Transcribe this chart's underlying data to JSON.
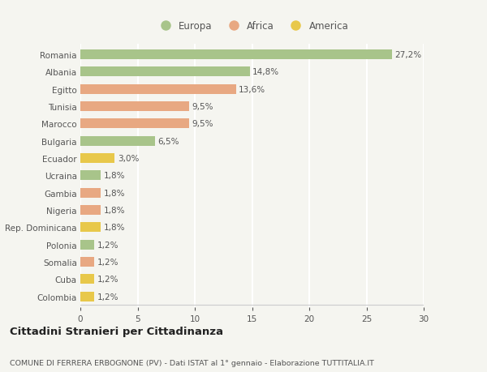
{
  "categories": [
    "Romania",
    "Albania",
    "Egitto",
    "Tunisia",
    "Marocco",
    "Bulgaria",
    "Ecuador",
    "Ucraina",
    "Gambia",
    "Nigeria",
    "Rep. Dominicana",
    "Polonia",
    "Somalia",
    "Cuba",
    "Colombia"
  ],
  "values": [
    27.2,
    14.8,
    13.6,
    9.5,
    9.5,
    6.5,
    3.0,
    1.8,
    1.8,
    1.8,
    1.8,
    1.2,
    1.2,
    1.2,
    1.2
  ],
  "labels": [
    "27,2%",
    "14,8%",
    "13,6%",
    "9,5%",
    "9,5%",
    "6,5%",
    "3,0%",
    "1,8%",
    "1,8%",
    "1,8%",
    "1,8%",
    "1,2%",
    "1,2%",
    "1,2%",
    "1,2%"
  ],
  "colors": [
    "#a8c48a",
    "#a8c48a",
    "#e8a882",
    "#e8a882",
    "#e8a882",
    "#a8c48a",
    "#e8c84a",
    "#a8c48a",
    "#e8a882",
    "#e8a882",
    "#e8c84a",
    "#a8c48a",
    "#e8a882",
    "#e8c84a",
    "#e8c84a"
  ],
  "legend_labels": [
    "Europa",
    "Africa",
    "America"
  ],
  "legend_colors": [
    "#a8c48a",
    "#e8a882",
    "#e8c84a"
  ],
  "xlim": [
    0,
    30
  ],
  "xticks": [
    0,
    5,
    10,
    15,
    20,
    25,
    30
  ],
  "title": "Cittadini Stranieri per Cittadinanza",
  "subtitle": "COMUNE DI FERRERA ERBOGNONE (PV) - Dati ISTAT al 1° gennaio - Elaborazione TUTTITALIA.IT",
  "bg_color": "#f5f5f0",
  "grid_color": "#ffffff",
  "bar_height": 0.55,
  "label_fontsize": 7.5,
  "tick_fontsize": 7.5,
  "title_fontsize": 9.5,
  "subtitle_fontsize": 6.8,
  "legend_fontsize": 8.5
}
